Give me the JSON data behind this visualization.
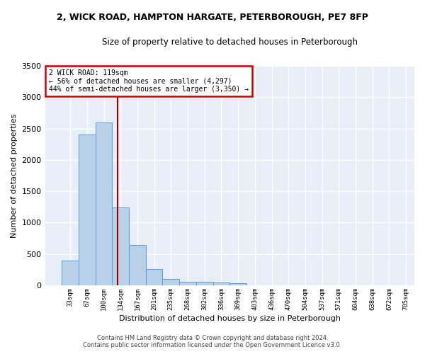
{
  "title": "2, WICK ROAD, HAMPTON HARGATE, PETERBOROUGH, PE7 8FP",
  "subtitle": "Size of property relative to detached houses in Peterborough",
  "xlabel": "Distribution of detached houses by size in Peterborough",
  "ylabel": "Number of detached properties",
  "bar_values": [
    390,
    2400,
    2600,
    1240,
    640,
    255,
    100,
    60,
    58,
    50,
    30,
    0,
    0,
    0,
    0,
    0,
    0,
    0,
    0,
    0
  ],
  "bar_color": "#b8d0e8",
  "bar_edge_color": "#5b9bd5",
  "categories": [
    "33sqm",
    "67sqm",
    "100sqm",
    "134sqm",
    "167sqm",
    "201sqm",
    "235sqm",
    "268sqm",
    "302sqm",
    "336sqm",
    "369sqm",
    "403sqm",
    "436sqm",
    "470sqm",
    "504sqm",
    "537sqm",
    "571sqm",
    "604sqm",
    "638sqm",
    "672sqm",
    "705sqm"
  ],
  "ylim": [
    0,
    3500
  ],
  "yticks": [
    0,
    500,
    1000,
    1500,
    2000,
    2500,
    3000,
    3500
  ],
  "property_line_x": 2.82,
  "property_line_color": "#990000",
  "annotation_title": "2 WICK ROAD: 119sqm",
  "annotation_line1": "← 56% of detached houses are smaller (4,297)",
  "annotation_line2": "44% of semi-detached houses are larger (3,350) →",
  "annotation_box_color": "#cc0000",
  "bg_color": "#e8eef7",
  "grid_color": "#d0d8e8",
  "footer1": "Contains HM Land Registry data © Crown copyright and database right 2024.",
  "footer2": "Contains public sector information licensed under the Open Government Licence v3.0."
}
